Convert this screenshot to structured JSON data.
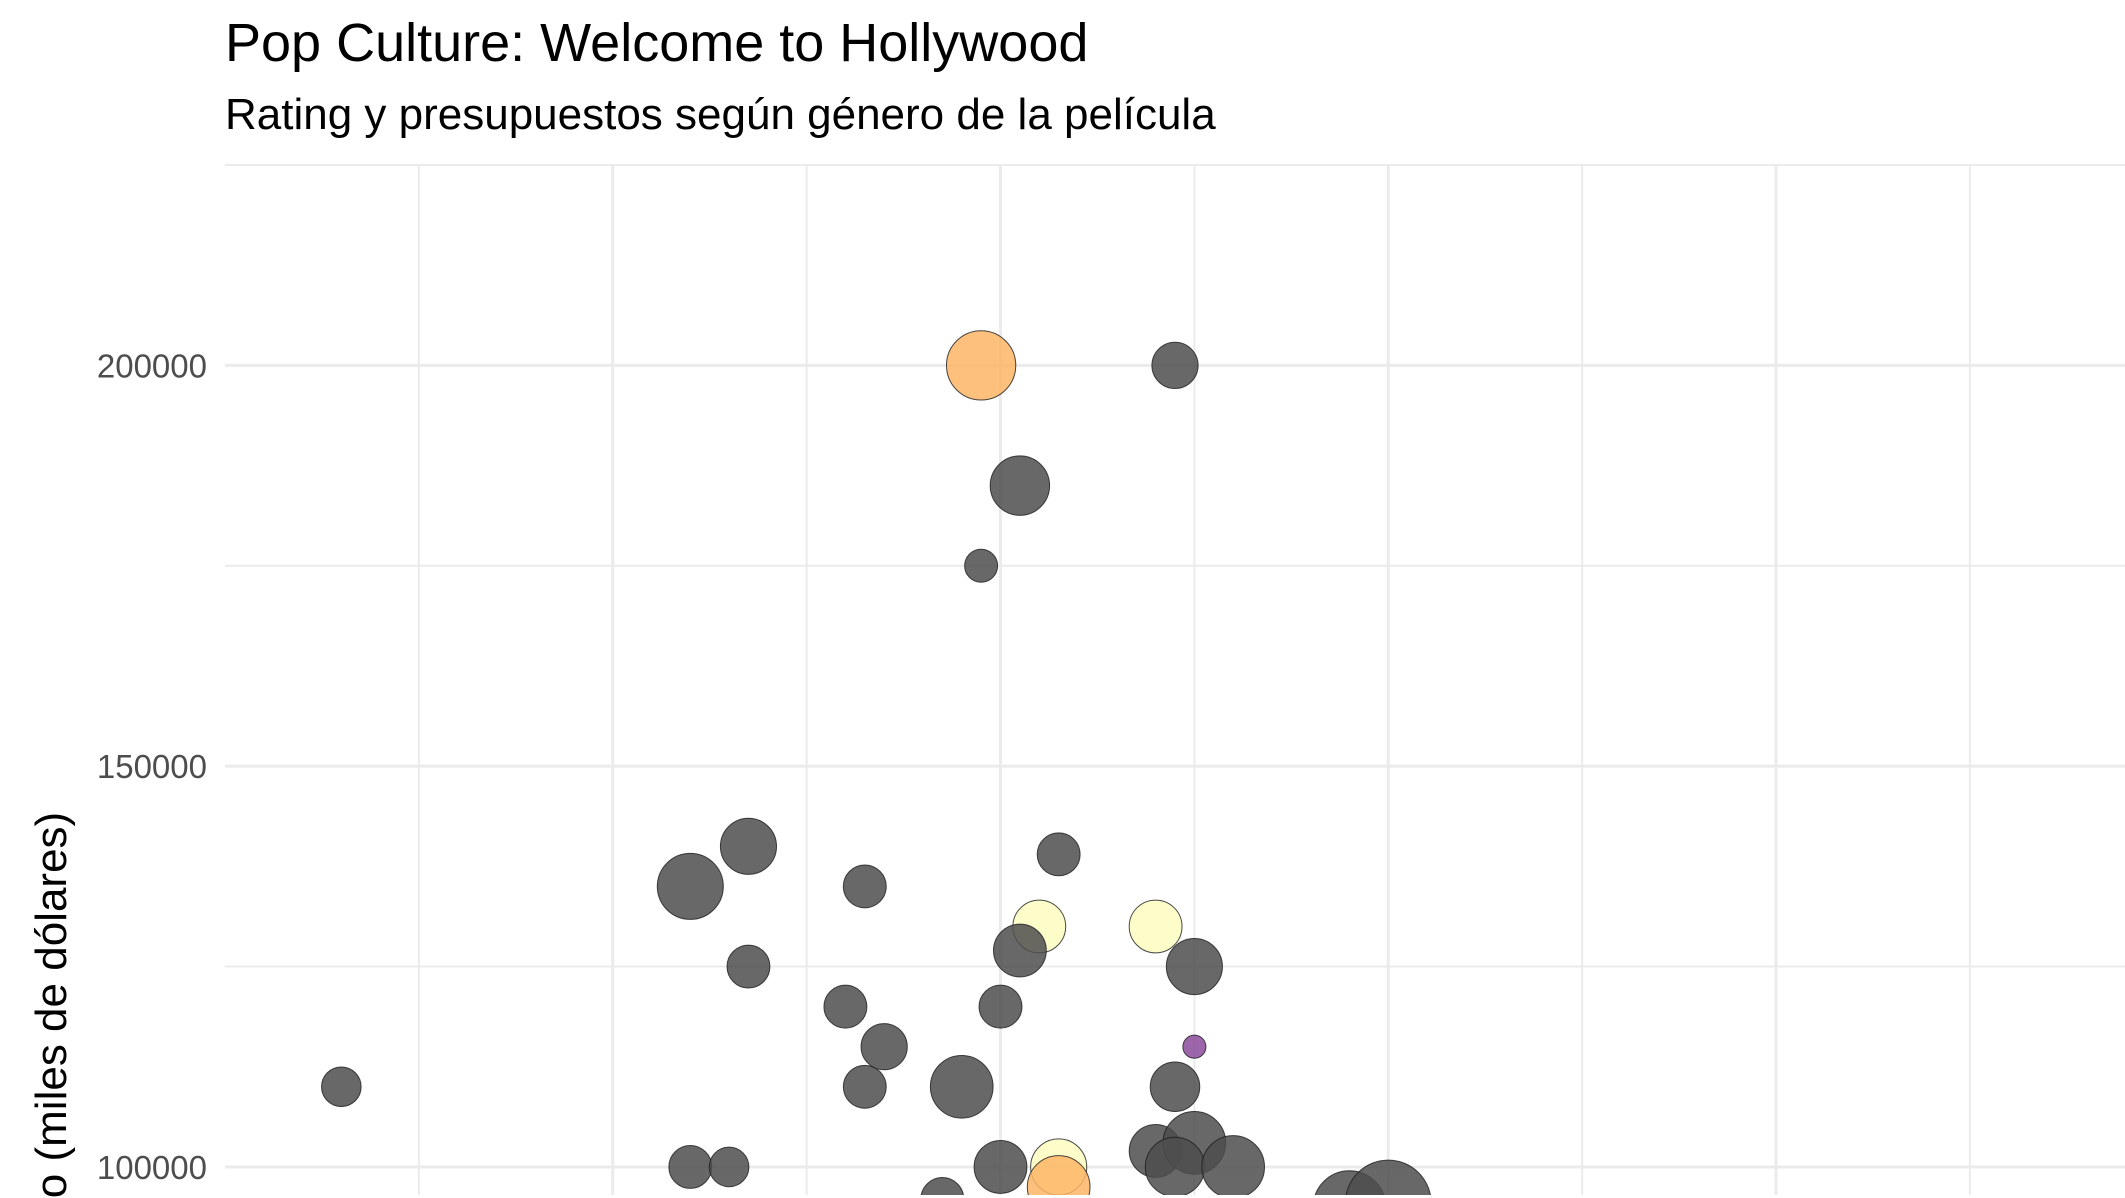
{
  "chart_data": {
    "type": "scatter",
    "title": "Pop Culture: Welcome to Hollywood",
    "subtitle": "Rating y presupuestos según género de la película",
    "xlabel": "",
    "ylabel": "Presupuesto (miles de dólares)",
    "ylabel_visible": "o (miles de dólares)",
    "grid": true,
    "y_ticks": [
      100000,
      150000,
      200000
    ],
    "y_tick_labels": [
      "100000",
      "150000",
      "200000"
    ],
    "x_gridlines": [
      4.5,
      5.0,
      5.5,
      6.0,
      6.5,
      7.0,
      7.5,
      8.0,
      8.5
    ],
    "xlim": [
      4.0,
      8.9
    ],
    "ylim": [
      96500,
      225000
    ],
    "colors": {
      "gray": "#4d4d4d",
      "orange": "#fdb566",
      "yellow": "#fcfdbf",
      "purple": "#8c4b9b"
    },
    "points": [
      {
        "x": 4.3,
        "y": 110000,
        "size": 12,
        "color": "gray"
      },
      {
        "x": 5.2,
        "y": 135000,
        "size": 20,
        "color": "gray"
      },
      {
        "x": 5.35,
        "y": 140000,
        "size": 17,
        "color": "gray"
      },
      {
        "x": 5.35,
        "y": 125000,
        "size": 13,
        "color": "gray"
      },
      {
        "x": 5.2,
        "y": 100000,
        "size": 13,
        "color": "gray"
      },
      {
        "x": 5.3,
        "y": 100000,
        "size": 12,
        "color": "gray"
      },
      {
        "x": 5.6,
        "y": 120000,
        "size": 13,
        "color": "gray"
      },
      {
        "x": 5.65,
        "y": 135000,
        "size": 13,
        "color": "gray"
      },
      {
        "x": 5.65,
        "y": 110000,
        "size": 13,
        "color": "gray"
      },
      {
        "x": 5.7,
        "y": 115000,
        "size": 14,
        "color": "gray"
      },
      {
        "x": 5.95,
        "y": 200000,
        "size": 21,
        "color": "orange"
      },
      {
        "x": 5.95,
        "y": 175000,
        "size": 10,
        "color": "gray"
      },
      {
        "x": 6.05,
        "y": 185000,
        "size": 18,
        "color": "gray"
      },
      {
        "x": 6.15,
        "y": 139000,
        "size": 13,
        "color": "gray"
      },
      {
        "x": 6.1,
        "y": 130000,
        "size": 16,
        "color": "yellow"
      },
      {
        "x": 6.05,
        "y": 127000,
        "size": 16,
        "color": "gray"
      },
      {
        "x": 6.0,
        "y": 120000,
        "size": 13,
        "color": "gray"
      },
      {
        "x": 5.9,
        "y": 110000,
        "size": 19,
        "color": "gray"
      },
      {
        "x": 6.0,
        "y": 100000,
        "size": 16,
        "color": "gray"
      },
      {
        "x": 5.85,
        "y": 96000,
        "size": 13,
        "color": "gray"
      },
      {
        "x": 6.15,
        "y": 100000,
        "size": 17,
        "color": "yellow"
      },
      {
        "x": 6.15,
        "y": 97500,
        "size": 19,
        "color": "orange"
      },
      {
        "x": 6.45,
        "y": 200000,
        "size": 14,
        "color": "gray"
      },
      {
        "x": 6.4,
        "y": 130000,
        "size": 16,
        "color": "yellow"
      },
      {
        "x": 6.5,
        "y": 125000,
        "size": 17,
        "color": "gray"
      },
      {
        "x": 6.5,
        "y": 115000,
        "size": 7,
        "color": "purple"
      },
      {
        "x": 6.45,
        "y": 110000,
        "size": 15,
        "color": "gray"
      },
      {
        "x": 6.4,
        "y": 102000,
        "size": 16,
        "color": "gray"
      },
      {
        "x": 6.5,
        "y": 103000,
        "size": 19,
        "color": "gray"
      },
      {
        "x": 6.45,
        "y": 100000,
        "size": 18,
        "color": "gray"
      },
      {
        "x": 6.6,
        "y": 100000,
        "size": 19,
        "color": "gray"
      },
      {
        "x": 6.9,
        "y": 95000,
        "size": 22,
        "color": "gray"
      },
      {
        "x": 7.0,
        "y": 95500,
        "size": 26,
        "color": "gray"
      }
    ]
  }
}
